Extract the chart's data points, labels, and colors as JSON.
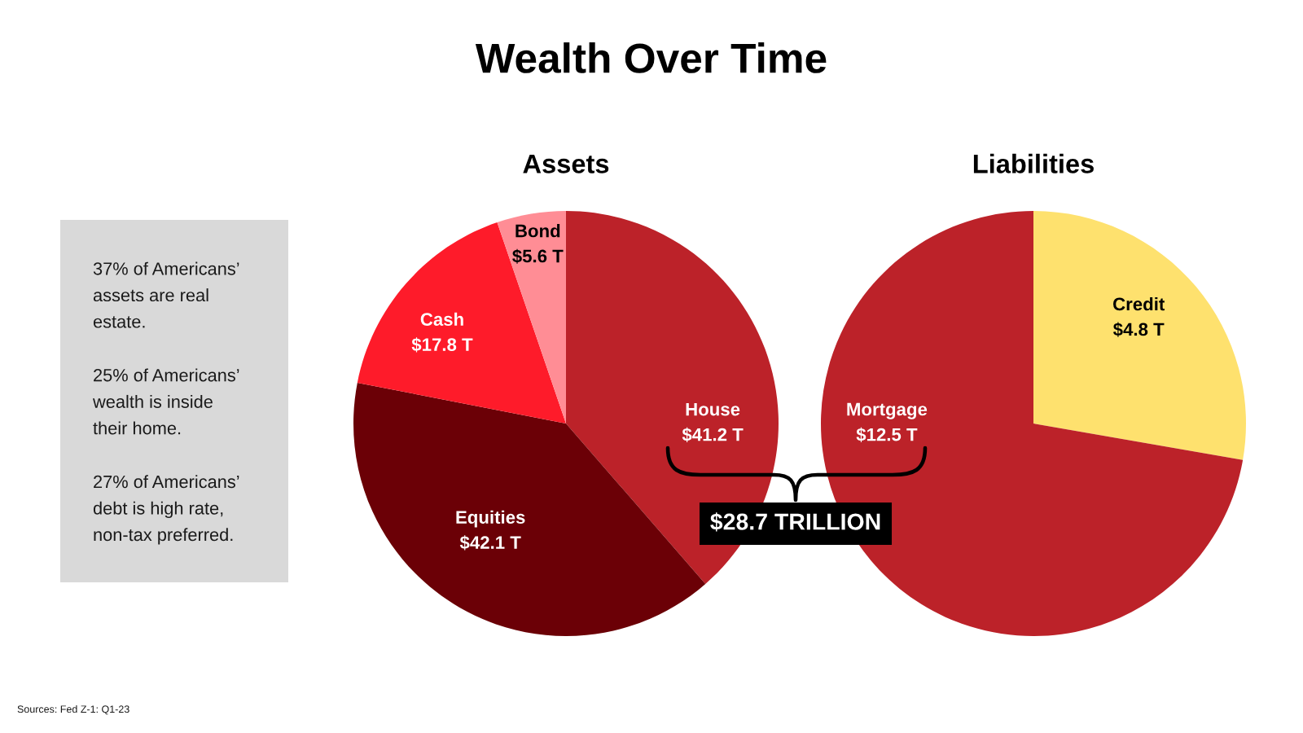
{
  "chart_data": [
    {
      "type": "other",
      "title": "Wealth Over Time",
      "annotations": [
        "37% of Americans’ assets are real estate.",
        "25% of Americans’ wealth is inside their home.",
        "27% of Americans’ debt is high rate, non-tax preferred.",
        "Sources: Fed Z-1: Q1-23"
      ]
    },
    {
      "type": "pie",
      "title": "Assets",
      "categories": [
        "House",
        "Equities",
        "Cash",
        "Bond"
      ],
      "values": [
        41.2,
        42.1,
        17.8,
        5.6
      ],
      "value_labels": [
        "$41.2 T",
        "$42.1 T",
        "$17.8 T",
        "$5.6 T"
      ],
      "colors": [
        "#bc2229",
        "#6b0006",
        "#fe1b2a",
        "#ff8d95"
      ]
    },
    {
      "type": "pie",
      "title": "Liabilities",
      "categories": [
        "Credit",
        "Mortgage"
      ],
      "values": [
        4.8,
        12.5
      ],
      "value_labels": [
        "$4.8 T",
        "$12.5 T"
      ],
      "colors": [
        "#fee16e",
        "#bc2229"
      ],
      "annotations": [
        "$28.7 TRILLION"
      ]
    }
  ]
}
